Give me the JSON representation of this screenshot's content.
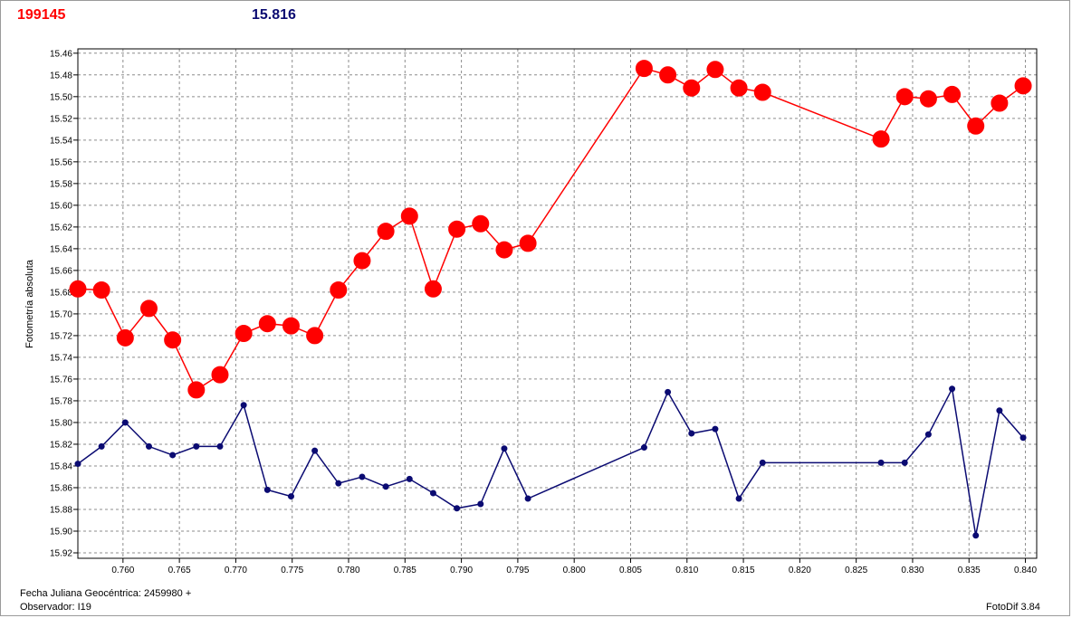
{
  "header": {
    "star_id": "199145",
    "reference_mag": "15.816"
  },
  "footer": {
    "jd_label": "Fecha Juliana Geocéntrica: 2459980 +",
    "observer": "Observador: I19",
    "software": "FotoDif 3.84"
  },
  "colors": {
    "target": "#ff0000",
    "comparison": "#0b0b72"
  },
  "chart_data": {
    "type": "scatter",
    "ylabel": "Fotometría absoluta",
    "xlabel": "",
    "xlim": [
      0.756,
      0.841
    ],
    "ylim": [
      15.925,
      15.456
    ],
    "y_inverted": true,
    "grid": true,
    "x_ticks": [
      "0.760",
      "0.765",
      "0.770",
      "0.775",
      "0.780",
      "0.785",
      "0.790",
      "0.795",
      "0.800",
      "0.805",
      "0.810",
      "0.815",
      "0.820",
      "0.825",
      "0.830",
      "0.835",
      "0.840"
    ],
    "y_ticks": [
      "15.46",
      "15.48",
      "15.50",
      "15.52",
      "15.54",
      "15.56",
      "15.58",
      "15.60",
      "15.62",
      "15.64",
      "15.66",
      "15.68",
      "15.70",
      "15.72",
      "15.74",
      "15.76",
      "15.78",
      "15.80",
      "15.82",
      "15.84",
      "15.86",
      "15.88",
      "15.90",
      "15.92"
    ],
    "series": [
      {
        "color": "#ff0000",
        "marker": "large-circle",
        "x": [
          0.756,
          0.7581,
          0.7602,
          0.7623,
          0.7644,
          0.7665,
          0.7686,
          0.7707,
          0.7728,
          0.7749,
          0.777,
          0.7791,
          0.7812,
          0.7833,
          0.7854,
          0.7875,
          0.7896,
          0.7917,
          0.7938,
          0.7959,
          0.8062,
          0.8083,
          0.8104,
          0.8125,
          0.8146,
          0.8167,
          0.8272,
          0.8293,
          0.8314,
          0.8335,
          0.8356,
          0.8377,
          0.8398
        ],
        "y": [
          15.677,
          15.678,
          15.722,
          15.695,
          15.724,
          15.77,
          15.756,
          15.718,
          15.709,
          15.711,
          15.72,
          15.678,
          15.651,
          15.624,
          15.61,
          15.677,
          15.622,
          15.617,
          15.641,
          15.635,
          15.474,
          15.48,
          15.492,
          15.475,
          15.492,
          15.496,
          15.539,
          15.5,
          15.502,
          15.498,
          15.527,
          15.506,
          15.49
        ]
      },
      {
        "color": "#0b0b72",
        "marker": "small-dot",
        "x": [
          0.756,
          0.7581,
          0.7602,
          0.7623,
          0.7644,
          0.7665,
          0.7686,
          0.7707,
          0.7728,
          0.7749,
          0.777,
          0.7791,
          0.7812,
          0.7833,
          0.7854,
          0.7875,
          0.7896,
          0.7917,
          0.7938,
          0.7959,
          0.8062,
          0.8083,
          0.8104,
          0.8125,
          0.8146,
          0.8167,
          0.8272,
          0.8293,
          0.8314,
          0.8335,
          0.8356,
          0.8377,
          0.8398
        ],
        "y": [
          15.838,
          15.822,
          15.8,
          15.822,
          15.83,
          15.822,
          15.822,
          15.784,
          15.862,
          15.868,
          15.826,
          15.856,
          15.85,
          15.859,
          15.852,
          15.865,
          15.879,
          15.875,
          15.824,
          15.87,
          15.823,
          15.772,
          15.81,
          15.806,
          15.87,
          15.837,
          15.837,
          15.837,
          15.811,
          15.769,
          15.904,
          15.789,
          15.814
        ]
      }
    ]
  }
}
